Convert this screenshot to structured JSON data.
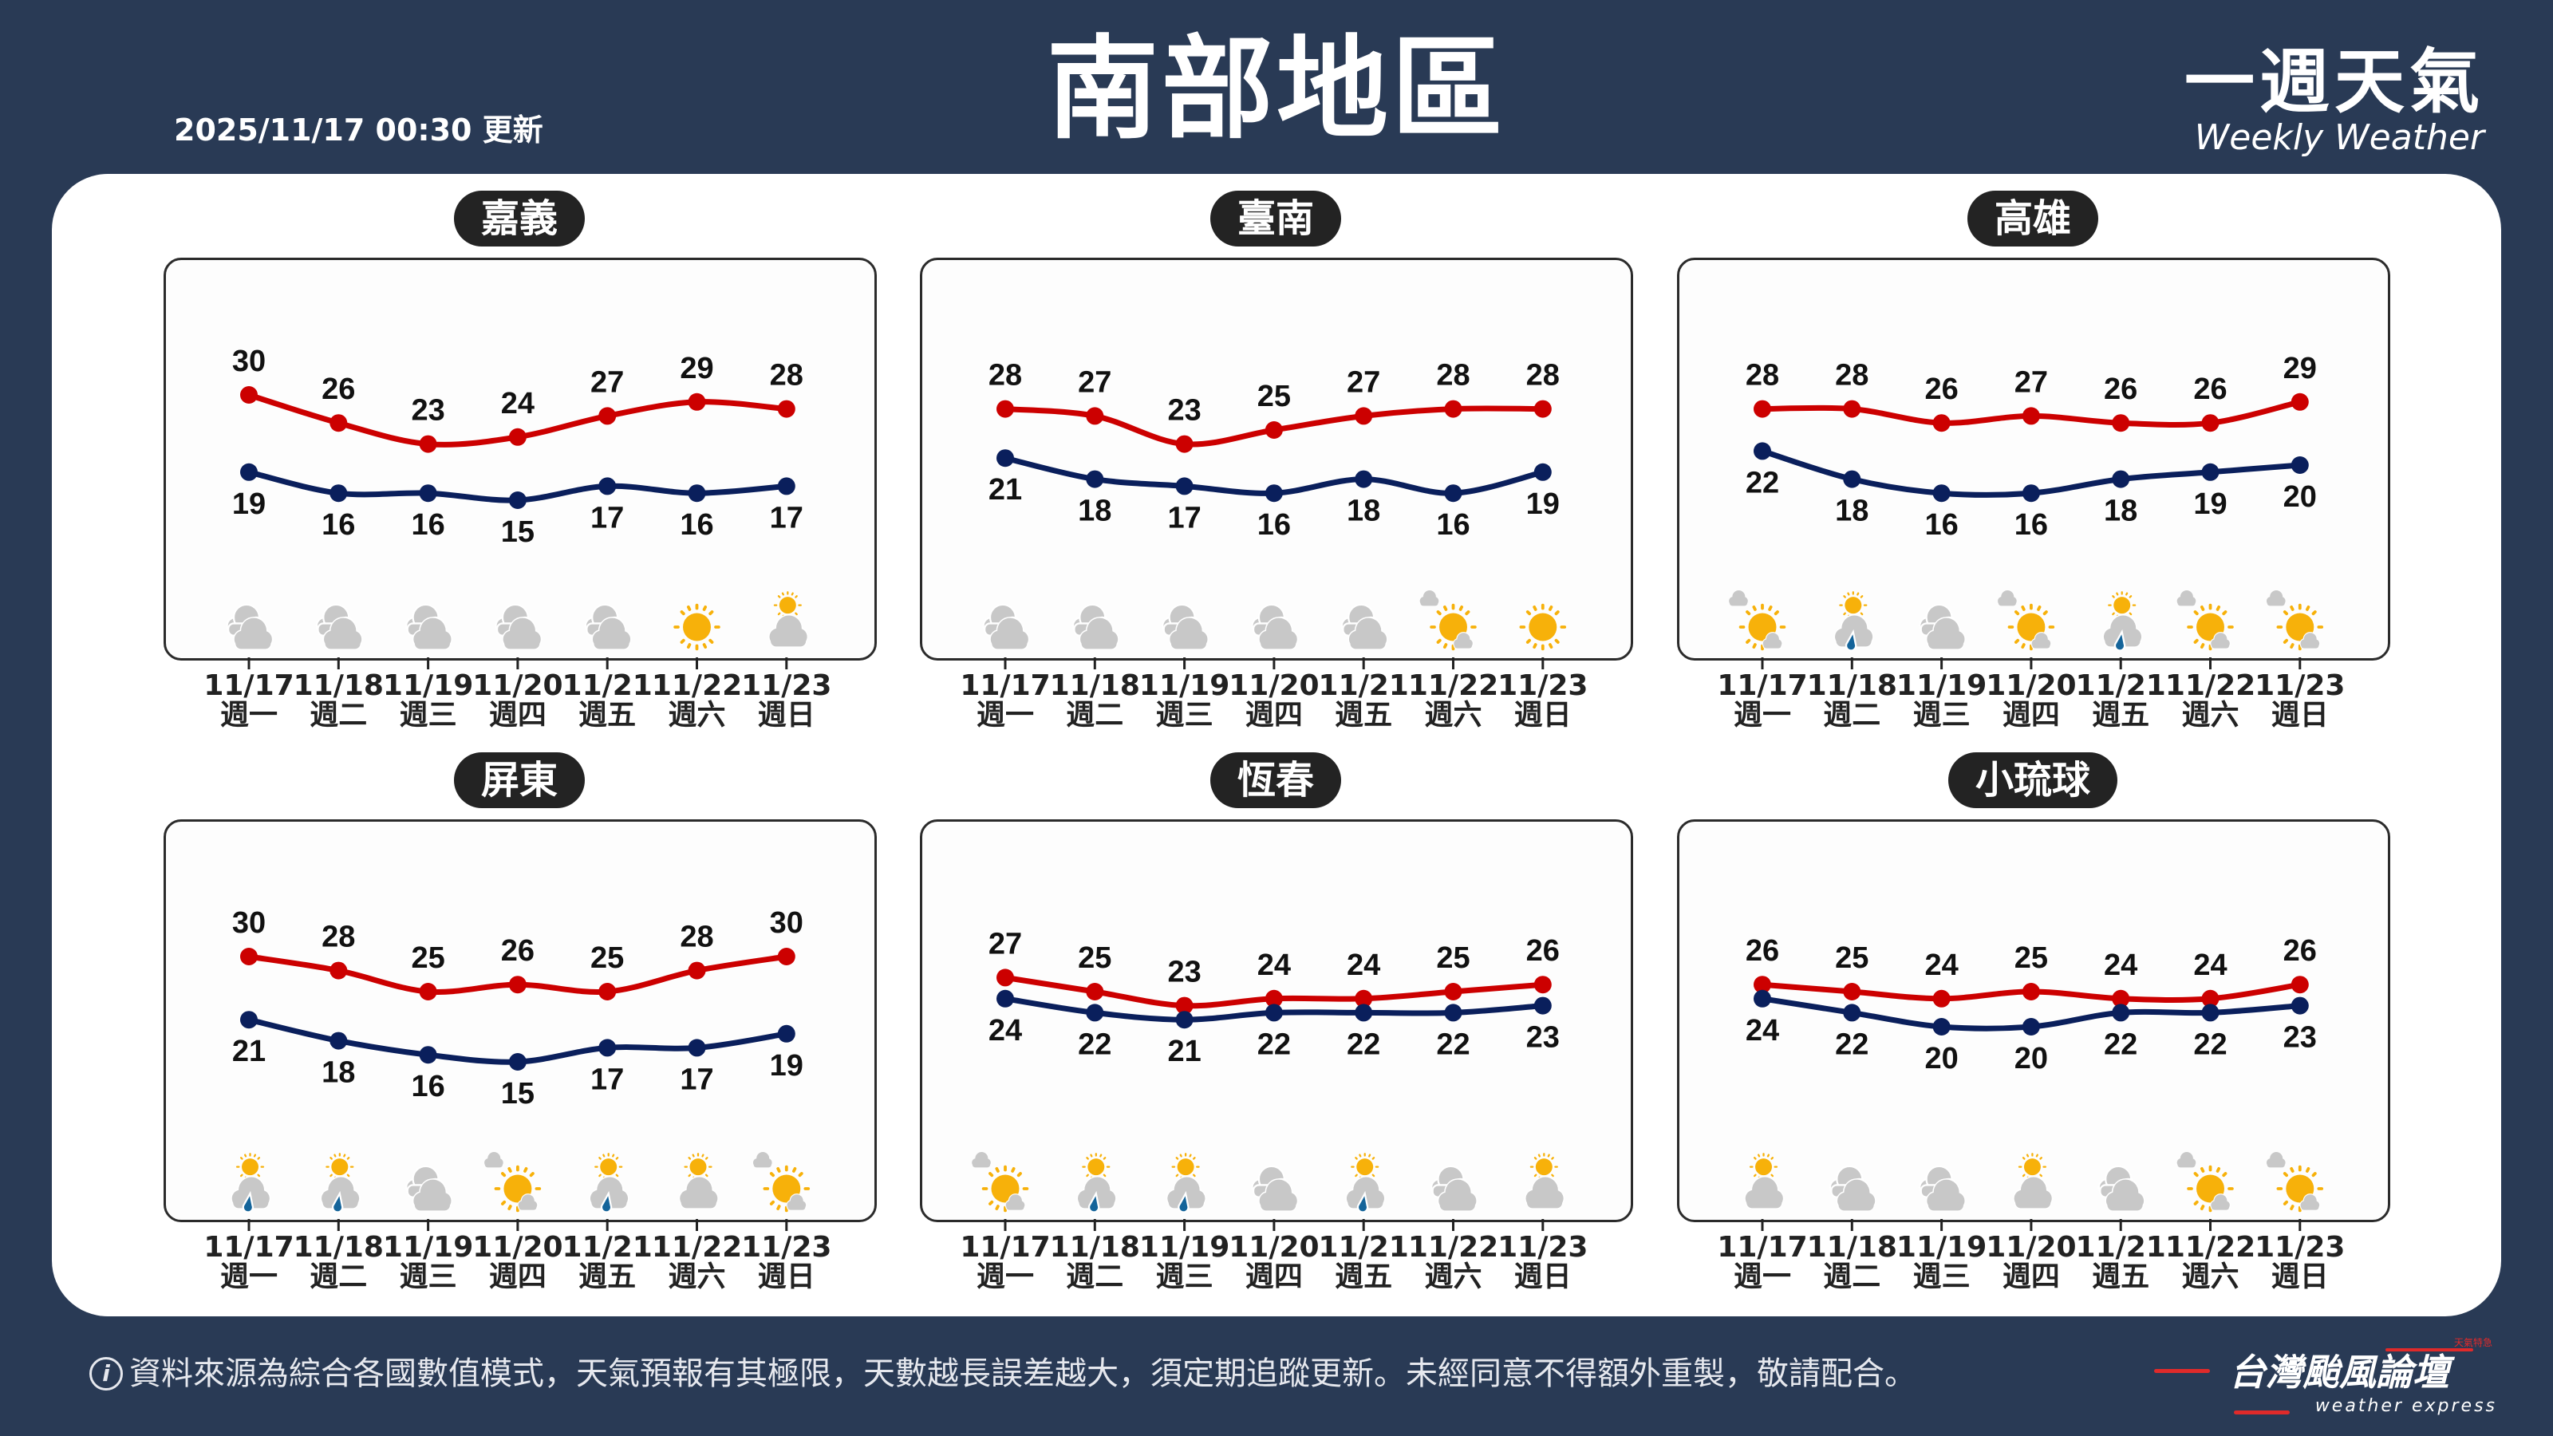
{
  "header": {
    "title": "南部地區",
    "updated": "2025/11/17 00:30 更新",
    "logo_zh": "一週天氣",
    "logo_en": "Weekly Weather"
  },
  "colors": {
    "background": "#293a55",
    "high": "#cc0000",
    "low": "#0a1f5c",
    "sun": "#f7b10a",
    "cloud": "#c8c8c8",
    "rain": "#14649a"
  },
  "days": [
    {
      "date": "11/17",
      "weekday": "週一"
    },
    {
      "date": "11/18",
      "weekday": "週二"
    },
    {
      "date": "11/19",
      "weekday": "週三"
    },
    {
      "date": "11/20",
      "weekday": "週四"
    },
    {
      "date": "11/21",
      "weekday": "週五"
    },
    {
      "date": "11/22",
      "weekday": "週六"
    },
    {
      "date": "11/23",
      "weekday": "週日"
    }
  ],
  "regions": [
    {
      "name": "嘉義",
      "high": [
        30,
        26,
        23,
        24,
        27,
        29,
        28
      ],
      "low": [
        19,
        16,
        16,
        15,
        17,
        16,
        17
      ],
      "icons": [
        "cloudy-icon",
        "cloudy-icon",
        "cloudy-icon",
        "cloudy-icon",
        "cloudy-icon",
        "sunny-icon",
        "partly-cloudy-icon"
      ]
    },
    {
      "name": "臺南",
      "high": [
        28,
        27,
        23,
        25,
        27,
        28,
        28
      ],
      "low": [
        21,
        18,
        17,
        16,
        18,
        16,
        19
      ],
      "icons": [
        "cloudy-icon",
        "cloudy-icon",
        "cloudy-icon",
        "cloudy-icon",
        "cloudy-icon",
        "mostly-sunny-icon",
        "sunny-icon"
      ]
    },
    {
      "name": "高雄",
      "high": [
        28,
        28,
        26,
        27,
        26,
        26,
        29
      ],
      "low": [
        22,
        18,
        16,
        16,
        18,
        19,
        20
      ],
      "icons": [
        "mostly-sunny-icon",
        "partly-cloudy-rain-icon",
        "cloudy-icon",
        "mostly-sunny-icon",
        "partly-cloudy-rain-icon",
        "mostly-sunny-icon",
        "mostly-sunny-icon"
      ]
    },
    {
      "name": "屏東",
      "high": [
        30,
        28,
        25,
        26,
        25,
        28,
        30
      ],
      "low": [
        21,
        18,
        16,
        15,
        17,
        17,
        19
      ],
      "icons": [
        "partly-cloudy-rain-icon",
        "partly-cloudy-rain-icon",
        "cloudy-icon",
        "mostly-sunny-icon",
        "partly-cloudy-rain-icon",
        "partly-cloudy-icon",
        "mostly-sunny-icon"
      ]
    },
    {
      "name": "恆春",
      "high": [
        27,
        25,
        23,
        24,
        24,
        25,
        26
      ],
      "low": [
        24,
        22,
        21,
        22,
        22,
        22,
        23
      ],
      "icons": [
        "mostly-sunny-icon",
        "partly-cloudy-rain-icon",
        "partly-cloudy-rain-icon",
        "cloudy-icon",
        "partly-cloudy-rain-icon",
        "cloudy-icon",
        "partly-cloudy-icon"
      ]
    },
    {
      "name": "小琉球",
      "high": [
        26,
        25,
        24,
        25,
        24,
        24,
        26
      ],
      "low": [
        24,
        22,
        20,
        20,
        22,
        22,
        23
      ],
      "icons": [
        "partly-cloudy-icon",
        "cloudy-icon",
        "cloudy-icon",
        "partly-cloudy-icon",
        "cloudy-icon",
        "mostly-sunny-icon",
        "mostly-sunny-icon"
      ]
    }
  ],
  "footer": {
    "info_icon": "i",
    "disclaimer": "資料來源為綜合各國數值模式，天氣預報有其極限，天數越長誤差越大，須定期追蹤更新。未經同意不得額外重製，敬請配合。",
    "brand_zh": "台灣颱風論壇",
    "brand_en": "weather express",
    "brand_tag": "天氣特急"
  }
}
